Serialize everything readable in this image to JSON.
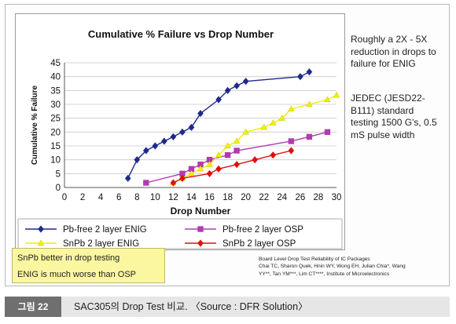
{
  "side_notes": {
    "note1": [
      "Roughly a 2X - 5X",
      "reduction in drops to",
      "failure for ENIG"
    ],
    "note2": [
      "JEDEC (JESD22-",
      "B111) standard",
      "testing 1500 G's, 0.5",
      "mS pulse width"
    ]
  },
  "yellow_box": {
    "line1": "SnPb better in drop testing",
    "line2": "ENIG is much worse than OSP"
  },
  "citation": [
    "Board Level Drop Test Reliability of IC Packages",
    "Chai TC, Sharon Quek, Hnin WY, Wong EH, Julian Chia*, Wang",
    "YY**, Tan YM***, Lim CT****, Institute of Microelectronics"
  ],
  "caption": {
    "label": "그림 22",
    "text": "SAC305의 Drop Test 비교. 〈Source : DFR Solution〉"
  },
  "chart_data": {
    "type": "line",
    "title": "Cumulative % Failure vs Drop Number",
    "xlabel": "Drop Number",
    "ylabel": "Cumulative % Failure",
    "xlim": [
      0,
      30
    ],
    "ylim": [
      0,
      45
    ],
    "xticks": [
      0,
      2,
      4,
      6,
      8,
      10,
      12,
      14,
      16,
      18,
      20,
      22,
      24,
      26,
      28,
      30
    ],
    "yticks": [
      0,
      5,
      10,
      15,
      20,
      25,
      30,
      35,
      40,
      45
    ],
    "grid": "horizontal",
    "legend": "bottom",
    "series": [
      {
        "name": "Pb-free 2 layer ENIG",
        "color": "#1f2a8c",
        "marker": "diamond",
        "x": [
          7,
          8,
          9,
          10,
          11,
          12,
          13,
          14,
          15,
          17,
          18,
          19,
          20,
          26,
          27
        ],
        "y": [
          3.3,
          10,
          13.3,
          15,
          16.7,
          18.3,
          20,
          21.7,
          26.7,
          31.7,
          35,
          36.7,
          38.3,
          40,
          41.7
        ]
      },
      {
        "name": "Pb-free 2 layer OSP",
        "color": "#b03cb0",
        "marker": "square",
        "x": [
          9,
          13,
          14,
          15,
          16,
          18,
          19,
          25,
          27,
          29
        ],
        "y": [
          1.7,
          5,
          6.7,
          8.3,
          10,
          11.7,
          13.3,
          16.7,
          18.3,
          20
        ]
      },
      {
        "name": "SnPb 2 layer ENIG",
        "color": "#f0f000",
        "marker": "triangle",
        "x": [
          12,
          13,
          14,
          15,
          16,
          17,
          18,
          19,
          20,
          22,
          23,
          24,
          25,
          27,
          29,
          30
        ],
        "y": [
          1.7,
          3.3,
          5,
          6.7,
          8.3,
          11.7,
          15,
          16.7,
          20,
          21.7,
          23.3,
          25,
          28.3,
          30,
          31.7,
          33.3
        ]
      },
      {
        "name": "SnPb 2 layer OSP",
        "color": "#e01010",
        "marker": "diamond",
        "x": [
          12,
          13,
          16,
          17,
          19,
          21,
          23,
          25
        ],
        "y": [
          1.7,
          3.3,
          5,
          6.7,
          8.3,
          10,
          11.7,
          13.3
        ]
      }
    ]
  }
}
